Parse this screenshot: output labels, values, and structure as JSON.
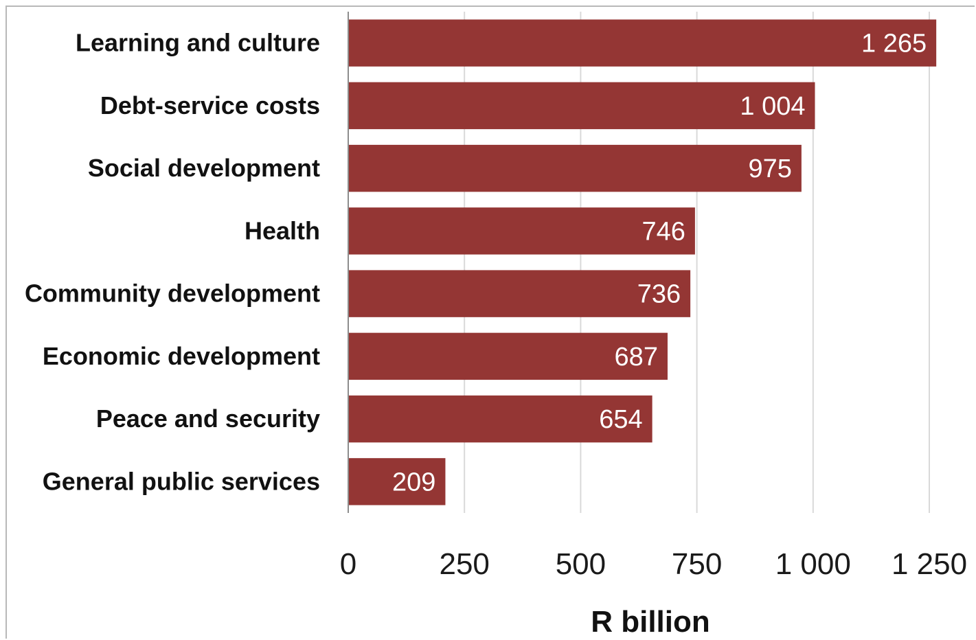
{
  "chart_data": {
    "type": "bar",
    "orientation": "horizontal",
    "categories": [
      "Learning and culture",
      "Debt-service costs",
      "Social development",
      "Health",
      "Community development",
      "Economic development",
      "Peace and security",
      "General public services"
    ],
    "values": [
      1265,
      1004,
      975,
      746,
      736,
      687,
      654,
      209
    ],
    "data_labels": [
      "1 265",
      "1 004",
      "975",
      "746",
      "736",
      "687",
      "654",
      "209"
    ],
    "xlim": [
      0,
      1250
    ],
    "xticks": [
      0,
      250,
      500,
      750,
      1000,
      1250
    ],
    "xtick_labels": [
      "0",
      "250",
      "500",
      "750",
      "1 000",
      "1 250"
    ],
    "xlabel": "R billion",
    "ylabel": "",
    "title": "",
    "grid": "vertical",
    "legend": "none",
    "colors": {
      "bar": "#943634",
      "grid": "#d9d9d9",
      "axis": "#8c8c8c",
      "data_label": "#ffffff"
    }
  }
}
